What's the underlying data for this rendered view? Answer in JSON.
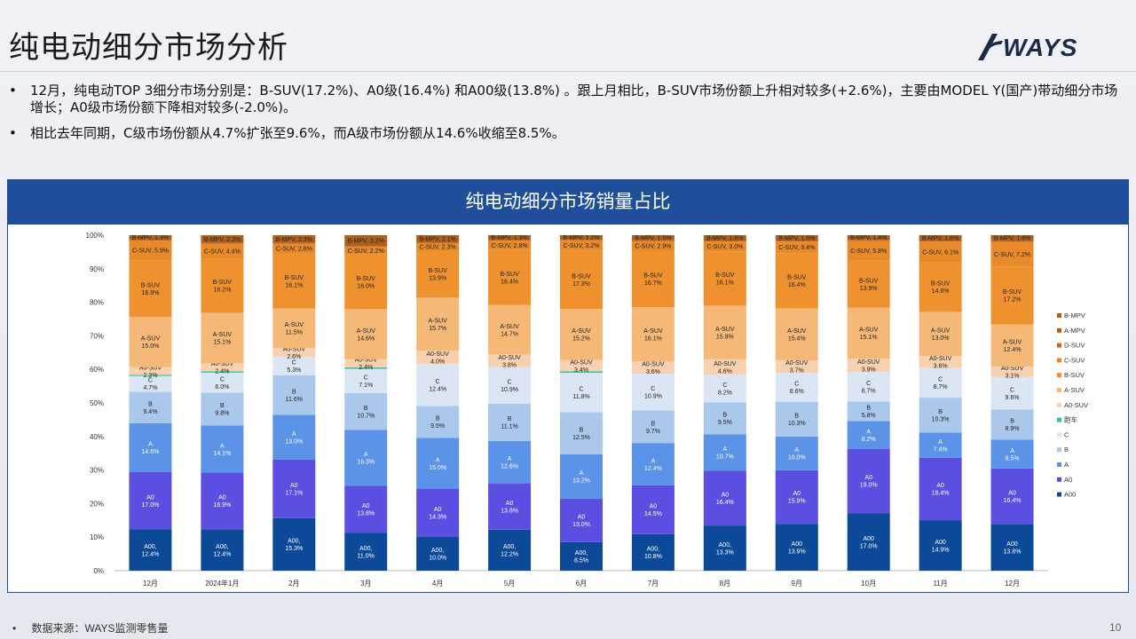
{
  "page": {
    "title": "纯电动细分市场分析",
    "logo_text": "WAYS",
    "bullets": [
      "12月，纯电动TOP 3细分市场分别是：B-SUV(17.2%)、A0级(16.4%) 和A00级(13.8%) 。跟上月相比，B-SUV市场份额上升相对较多(+2.6%)，主要由MODEL Y(国产)带动细分市场增长；A0级市场份额下降相对较多(-2.0%)。",
      "相比去年同期，C级市场份额从4.7%扩张至9.6%，而A级市场份额从14.6%收缩至8.5%。"
    ],
    "bullet_mark": "•",
    "source": "数据来源：WAYS监测零售量",
    "page_number": "10",
    "colors": {
      "header": "#1f4e9a",
      "accent_dark": "#1b2a48"
    }
  },
  "chart_data": {
    "type": "bar",
    "stacked": true,
    "title": "纯电动细分市场销量占比",
    "categories": [
      "12月",
      "2024年1月",
      "2月",
      "3月",
      "4月",
      "5月",
      "6月",
      "7月",
      "8月",
      "9月",
      "10月",
      "11月",
      "12月"
    ],
    "y_ticks": [
      "0%",
      "10%",
      "20%",
      "30%",
      "40%",
      "50%",
      "60%",
      "70%",
      "80%",
      "90%",
      "100%"
    ],
    "ylim": [
      0,
      100
    ],
    "grid": false,
    "legend_position": "right",
    "legend_order": [
      "B-MPV",
      "A-MPV",
      "D-SUV",
      "C-SUV",
      "B-SUV",
      "A-SUV",
      "A0-SUV",
      "跑车",
      "C",
      "B",
      "A",
      "A0",
      "A00"
    ],
    "series": [
      {
        "name": "A00",
        "color": "#0c4a99",
        "values": [
          12.4,
          12.4,
          15.3,
          11.0,
          10.0,
          12.2,
          8.5,
          10.8,
          13.3,
          13.9,
          17.0,
          14.9,
          13.8
        ],
        "labels": [
          "A00,\n12.4%",
          "A00,\n12.4%",
          "A00,\n15.3%",
          "A00,\n11.0%",
          "A00,\n10.0%",
          "A00,\n12.2%",
          "A00,\n8.5%",
          "A00,\n10.8%",
          "A00,\n13.3%",
          "A00\n13.9%",
          "A00\n17.0%",
          "A00\n14.9%",
          "A00\n13.8%"
        ]
      },
      {
        "name": "A0",
        "color": "#5a4fe0",
        "values": [
          17.0,
          16.9,
          17.1,
          13.8,
          14.3,
          13.8,
          13.0,
          14.5,
          16.4,
          15.9,
          19.0,
          18.4,
          16.4
        ],
        "labels": [
          "A0\n17.0%",
          "A0\n16.9%",
          "A0\n17.1%",
          "A0\n13.8%",
          "A0\n14.3%",
          "A0\n13.8%",
          "A0\n13.0%",
          "A0\n14.5%",
          "A0\n16.4%",
          "A0\n15.9%",
          "A0\n19.0%",
          "A0\n18.4%",
          "A0\n16.4%"
        ]
      },
      {
        "name": "A",
        "color": "#5a93e8",
        "values": [
          14.6,
          14.1,
          13.0,
          16.3,
          15.0,
          12.6,
          13.2,
          12.4,
          10.7,
          10.0,
          8.2,
          7.4,
          8.5
        ],
        "labels": [
          "A\n14.6%",
          "A\n14.1%",
          "A\n13.0%",
          "A\n16.3%",
          "A\n15.0%",
          "A\n12.6%",
          "A\n13.2%",
          "A\n12.4%",
          "A\n10.7%",
          "A\n10.0%",
          "A\n8.2%",
          "A\n7.4%",
          "A\n8.5%"
        ]
      },
      {
        "name": "B",
        "color": "#aac7ec",
        "values": [
          9.4,
          9.8,
          11.6,
          10.7,
          9.5,
          11.1,
          12.5,
          9.7,
          9.5,
          10.3,
          5.8,
          10.3,
          8.9
        ],
        "labels": [
          "B\n9.4%",
          "B\n9.8%",
          "B\n11.6%",
          "B\n10.7%",
          "B\n9.5%",
          "B\n11.1%",
          "B\n12.5%",
          "B\n9.7%",
          "B\n9.5%",
          "B\n10.3%",
          "B\n5.8%",
          "B\n10.3%",
          "B\n8.9%"
        ]
      },
      {
        "name": "C",
        "color": "#dbe6f4",
        "values": [
          4.7,
          6.0,
          5.3,
          7.1,
          12.4,
          10.9,
          11.8,
          10.9,
          8.2,
          8.6,
          8.7,
          8.7,
          9.6
        ],
        "labels": [
          "C\n4.7%",
          "C\n6.0%",
          "C\n5.3%",
          "C\n7.1%",
          "C\n12.4%",
          "C\n10.9%",
          "C\n11.8%",
          "C\n10.9%",
          "C\n8.2%",
          "C\n8.6%",
          "C\n8.7%",
          "C\n8.7%",
          "C\n9.6%"
        ]
      },
      {
        "name": "跑车",
        "color": "#2cc5a0",
        "values": [
          0.3,
          0.4,
          0,
          0.4,
          0,
          0,
          0.4,
          0,
          0,
          0,
          0,
          0,
          0
        ],
        "labels": [
          "",
          "",
          "",
          "",
          "",
          "",
          "",
          "",
          "",
          "",
          "",
          "",
          ""
        ]
      },
      {
        "name": "A0-SUV",
        "color": "#f8d2b0",
        "values": [
          2.3,
          2.4,
          2.6,
          2.4,
          4.0,
          3.8,
          3.4,
          3.6,
          4.6,
          3.7,
          3.9,
          3.6,
          3.1
        ],
        "labels": [
          "A0-SUV\n2.3%",
          "A0-SUV\n2.4%",
          "A0-SUV\n2.6%",
          "A0-SUV\n2.4%",
          "A0-SUV\n4.0%",
          "A0-SUV\n3.8%",
          "A0-SUV\n3.4%",
          "A0-SUV\n3.6%",
          "A0-SUV\n4.6%",
          "A0-SUV\n3.7%",
          "A0-SUV\n3.9%",
          "A0-SUV\n3.6%",
          "A0-SUV\n3.1%"
        ]
      },
      {
        "name": "A-SUV",
        "color": "#f6b877",
        "values": [
          15.0,
          15.1,
          11.5,
          14.6,
          15.7,
          14.7,
          15.2,
          16.1,
          15.9,
          15.4,
          15.1,
          13.0,
          12.4
        ],
        "labels": [
          "A-SUV\n15.0%",
          "A-SUV\n15.1%",
          "A-SUV\n11.5%",
          "A-SUV\n14.6%",
          "A-SUV\n15.7%",
          "A-SUV\n14.7%",
          "A-SUV\n15.2%",
          "A-SUV\n16.1%",
          "A-SUV\n15.9%",
          "A-SUV\n15.4%",
          "A-SUV\n15.1%",
          "A-SUV\n13.0%",
          "A-SUV\n12.4%"
        ]
      },
      {
        "name": "B-SUV",
        "color": "#f0912f",
        "values": [
          16.9,
          16.2,
          16.1,
          16.0,
          13.9,
          16.4,
          17.3,
          16.7,
          16.1,
          16.4,
          13.9,
          14.6,
          17.2
        ],
        "labels": [
          "B-SUV\n16.9%",
          "B-SUV\n16.2%",
          "B-SUV\n16.1%",
          "B-SUV\n16.0%",
          "B-SUV\n13.9%",
          "B-SUV\n16.4%",
          "B-SUV\n17.3%",
          "B-SUV\n16.7%",
          "B-SUV\n16.1%",
          "B-SUV\n16.4%",
          "B-SUV\n13.9%",
          "B-SUV\n14.6%",
          "B-SUV\n17.2%"
        ]
      },
      {
        "name": "C-SUV",
        "color": "#e88a2a",
        "values": [
          5.9,
          4.4,
          2.8,
          2.2,
          2.3,
          2.8,
          3.2,
          2.9,
          3.0,
          3.4,
          5.8,
          6.1,
          7.2
        ],
        "labels": [
          "C-SUV, 5.9%",
          "C-SUV, 4.4%",
          "C-SUV, 2.8%",
          "C-SUV, 2.2%",
          "C-SUV, 2.3%",
          "C-SUV, 2.8%",
          "C-SUV, 3.2%",
          "C-SUV, 2.9%",
          "C-SUV, 3.0%",
          "C-SUV, 3.4%",
          "C-SUV, 5.8%",
          "C-SUV, 6.1%",
          "C-SUV, 7.2%"
        ]
      },
      {
        "name": "D-SUV",
        "color": "#c7661c",
        "values": [
          0.2,
          0.2,
          0.1,
          0.1,
          0.1,
          0.2,
          0.2,
          0.1,
          0.1,
          0.2,
          0.2,
          0.2,
          0.3
        ],
        "labels": [
          "",
          "",
          "",
          "",
          "",
          "",
          "",
          "",
          "",
          "",
          "",
          "",
          ""
        ]
      },
      {
        "name": "A-MPV",
        "color": "#b0601c",
        "values": [
          0.1,
          0.1,
          0.1,
          0.1,
          0.1,
          0.1,
          0.1,
          0.1,
          0.1,
          0.1,
          0.1,
          0.1,
          0.1
        ],
        "labels": [
          "",
          "",
          "",
          "",
          "",
          "",
          "",
          "",
          "",
          "",
          "",
          "",
          ""
        ]
      },
      {
        "name": "B-MPV",
        "color": "#b0601c",
        "values": [
          1.3,
          2.3,
          2.3,
          3.2,
          2.1,
          1.3,
          1.2,
          1.5,
          1.6,
          1.6,
          1.4,
          1.6,
          1.6
        ],
        "labels": [
          "B-MPV, 1.3%",
          "B-MPV, 2.3%",
          "B-MPV, 2.3%",
          "B-MPV, 3.2%",
          "B-MPV, 2.1%",
          "B-MPV, 1.3%",
          "B-MPV, 1.2%",
          "B-MPV, 1.5%",
          "B-MPV, 1.6%",
          "B-MPV, 1.6%",
          "B-MPV, 1.4%",
          "B-MPV, 1.6%",
          "B-MPV, 1.6%"
        ]
      }
    ]
  }
}
